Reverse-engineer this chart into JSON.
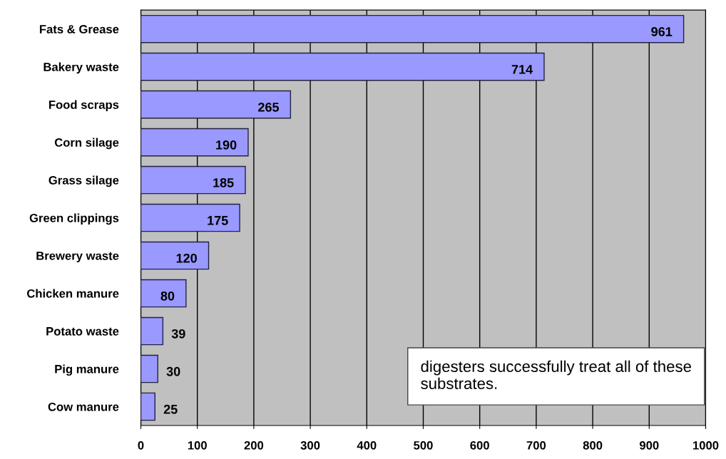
{
  "chart_data": {
    "type": "bar",
    "orientation": "horizontal",
    "categories": [
      "Fats & Grease",
      "Bakery waste",
      "Food scraps",
      "Corn silage",
      "Grass silage",
      "Green clippings",
      "Brewery waste",
      "Chicken manure",
      "Potato waste",
      "Pig manure",
      "Cow manure"
    ],
    "values": [
      961,
      714,
      265,
      190,
      185,
      175,
      120,
      80,
      39,
      30,
      25
    ],
    "color": "#9999ff",
    "xlim": [
      0,
      1000
    ],
    "xticks": [
      0,
      100,
      200,
      300,
      400,
      500,
      600,
      700,
      800,
      900,
      1000
    ],
    "grid": "x",
    "data_labels": true,
    "annotations": [
      "digesters successfully treat all of these substrates."
    ]
  }
}
